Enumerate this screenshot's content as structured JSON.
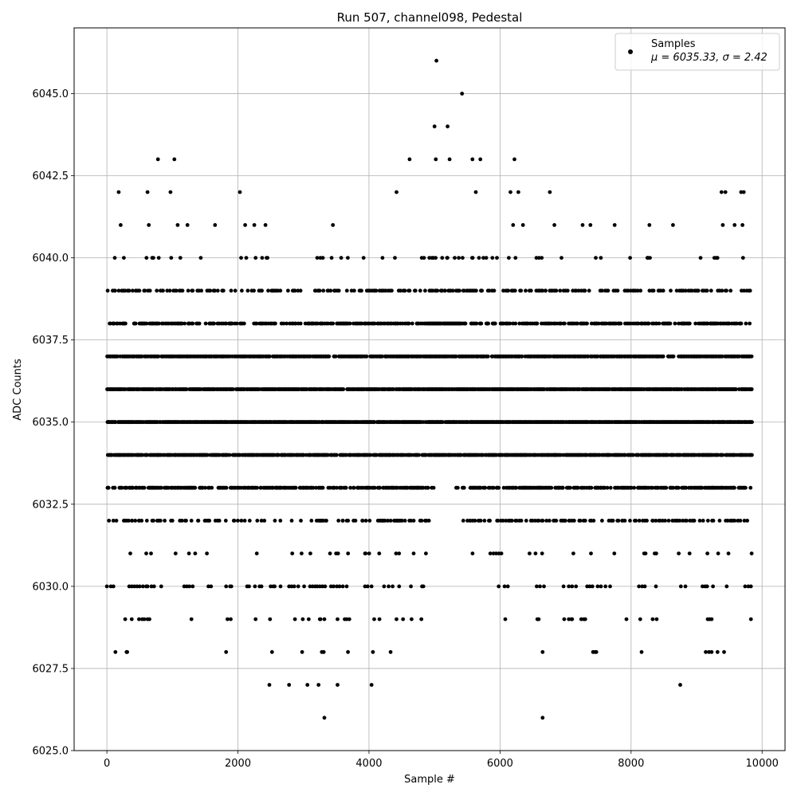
{
  "chart_data": {
    "type": "scatter",
    "title": "Run 507, channel098, Pedestal",
    "xlabel": "Sample #",
    "ylabel": "ADC Counts",
    "xlim": [
      -500,
      10350
    ],
    "ylim": [
      6025.0,
      6047.0
    ],
    "x_ticks": [
      0,
      2000,
      4000,
      6000,
      8000,
      10000
    ],
    "y_ticks": [
      6025.0,
      6027.5,
      6030.0,
      6032.5,
      6035.0,
      6037.5,
      6040.0,
      6042.5,
      6045.0
    ],
    "x_tick_labels": [
      "0",
      "2000",
      "4000",
      "6000",
      "8000",
      "10000"
    ],
    "y_tick_labels": [
      "6025.0",
      "6027.5",
      "6030.0",
      "6032.5",
      "6035.0",
      "6037.5",
      "6040.0",
      "6042.5",
      "6045.0"
    ],
    "grid": true,
    "legend_position": "top-right",
    "n_samples": 9850,
    "series": [
      {
        "name": "Samples",
        "stats_label": "μ = 6035.33, σ = 2.42",
        "color": "#000000",
        "levels": [
          {
            "y": 6026,
            "x": [
              3320,
              6650
            ]
          },
          {
            "y": 6027,
            "x": [
              2480,
              2780,
              3060,
              3230,
              3520,
              4040,
              8750
            ]
          },
          {
            "y": 6028,
            "x": [
              130,
              300,
              310,
              1820,
              2520,
              2980,
              3280,
              3310,
              3680,
              4060,
              4330,
              6650,
              7420,
              7450,
              7470,
              8160,
              9140,
              9190,
              9230,
              9320,
              9420
            ]
          },
          {
            "y": 6029,
            "x": [
              280,
              380,
              490,
              540,
              570,
              620,
              650,
              1290,
              1840,
              1890,
              2270,
              2490,
              2870,
              2990,
              3080,
              3250,
              3260,
              3320,
              3520,
              3630,
              3660,
              3700,
              4080,
              4160,
              4420,
              4520,
              4650,
              4800,
              6080,
              6570,
              6590,
              6980,
              7050,
              7090,
              7100,
              7240,
              7280,
              7300,
              7930,
              8140,
              8330,
              8390,
              9170,
              9200,
              9230,
              9830
            ]
          },
          {
            "y": 6030,
            "x": [
              0,
              60,
              100,
              340,
              380,
              420,
              460,
              500,
              550,
              600,
              620,
              680,
              720,
              830,
              1180,
              1220,
              1260,
              1310,
              1550,
              1590,
              1820,
              1880,
              1900,
              2140,
              2170,
              2260,
              2330,
              2360,
              2500,
              2540,
              2560,
              2650,
              2780,
              2820,
              2860,
              2920,
              3010,
              3100,
              3140,
              3180,
              3210,
              3250,
              3290,
              3330,
              3420,
              3460,
              3510,
              3550,
              3600,
              3660,
              3940,
              3980,
              4040,
              4230,
              4300,
              4360,
              4460,
              4640,
              4810,
              4830,
              5980,
              6070,
              6120,
              6560,
              6610,
              6670,
              6970,
              7050,
              7100,
              7160,
              7330,
              7370,
              7410,
              7490,
              7540,
              7610,
              7680,
              8120,
              8170,
              8210,
              8380,
              8760,
              8830,
              9090,
              9130,
              9160,
              9250,
              9460,
              9740,
              9790,
              9830
            ]
          }
        ],
        "upper_points": [
          {
            "x": 210,
            "y": 6041
          },
          {
            "x": 180,
            "y": 6042
          },
          {
            "x": 120,
            "y": 6040
          },
          {
            "x": 620,
            "y": 6042
          },
          {
            "x": 640,
            "y": 6041
          },
          {
            "x": 780,
            "y": 6043
          },
          {
            "x": 970,
            "y": 6042
          },
          {
            "x": 1030,
            "y": 6043
          },
          {
            "x": 1080,
            "y": 6041
          },
          {
            "x": 1230,
            "y": 6041
          },
          {
            "x": 1650,
            "y": 6041
          },
          {
            "x": 2030,
            "y": 6042
          },
          {
            "x": 2110,
            "y": 6041
          },
          {
            "x": 2250,
            "y": 6041
          },
          {
            "x": 2420,
            "y": 6041
          },
          {
            "x": 3450,
            "y": 6041
          },
          {
            "x": 4420,
            "y": 6042
          },
          {
            "x": 4620,
            "y": 6043
          },
          {
            "x": 5000,
            "y": 6044
          },
          {
            "x": 5020,
            "y": 6043
          },
          {
            "x": 5030,
            "y": 6046
          },
          {
            "x": 5200,
            "y": 6044
          },
          {
            "x": 5230,
            "y": 6043
          },
          {
            "x": 5420,
            "y": 6045
          },
          {
            "x": 5580,
            "y": 6043
          },
          {
            "x": 5700,
            "y": 6043
          },
          {
            "x": 5630,
            "y": 6042
          },
          {
            "x": 6220,
            "y": 6043
          },
          {
            "x": 6160,
            "y": 6042
          },
          {
            "x": 6280,
            "y": 6042
          },
          {
            "x": 6760,
            "y": 6042
          },
          {
            "x": 6200,
            "y": 6041
          },
          {
            "x": 6350,
            "y": 6041
          },
          {
            "x": 6830,
            "y": 6041
          },
          {
            "x": 7260,
            "y": 6041
          },
          {
            "x": 7380,
            "y": 6041
          },
          {
            "x": 7750,
            "y": 6041
          },
          {
            "x": 8280,
            "y": 6041
          },
          {
            "x": 8640,
            "y": 6041
          },
          {
            "x": 9380,
            "y": 6042
          },
          {
            "x": 9440,
            "y": 6042
          },
          {
            "x": 9400,
            "y": 6041
          },
          {
            "x": 9580,
            "y": 6041
          },
          {
            "x": 9680,
            "y": 6042
          },
          {
            "x": 9720,
            "y": 6042
          },
          {
            "x": 9700,
            "y": 6041
          }
        ]
      }
    ]
  }
}
